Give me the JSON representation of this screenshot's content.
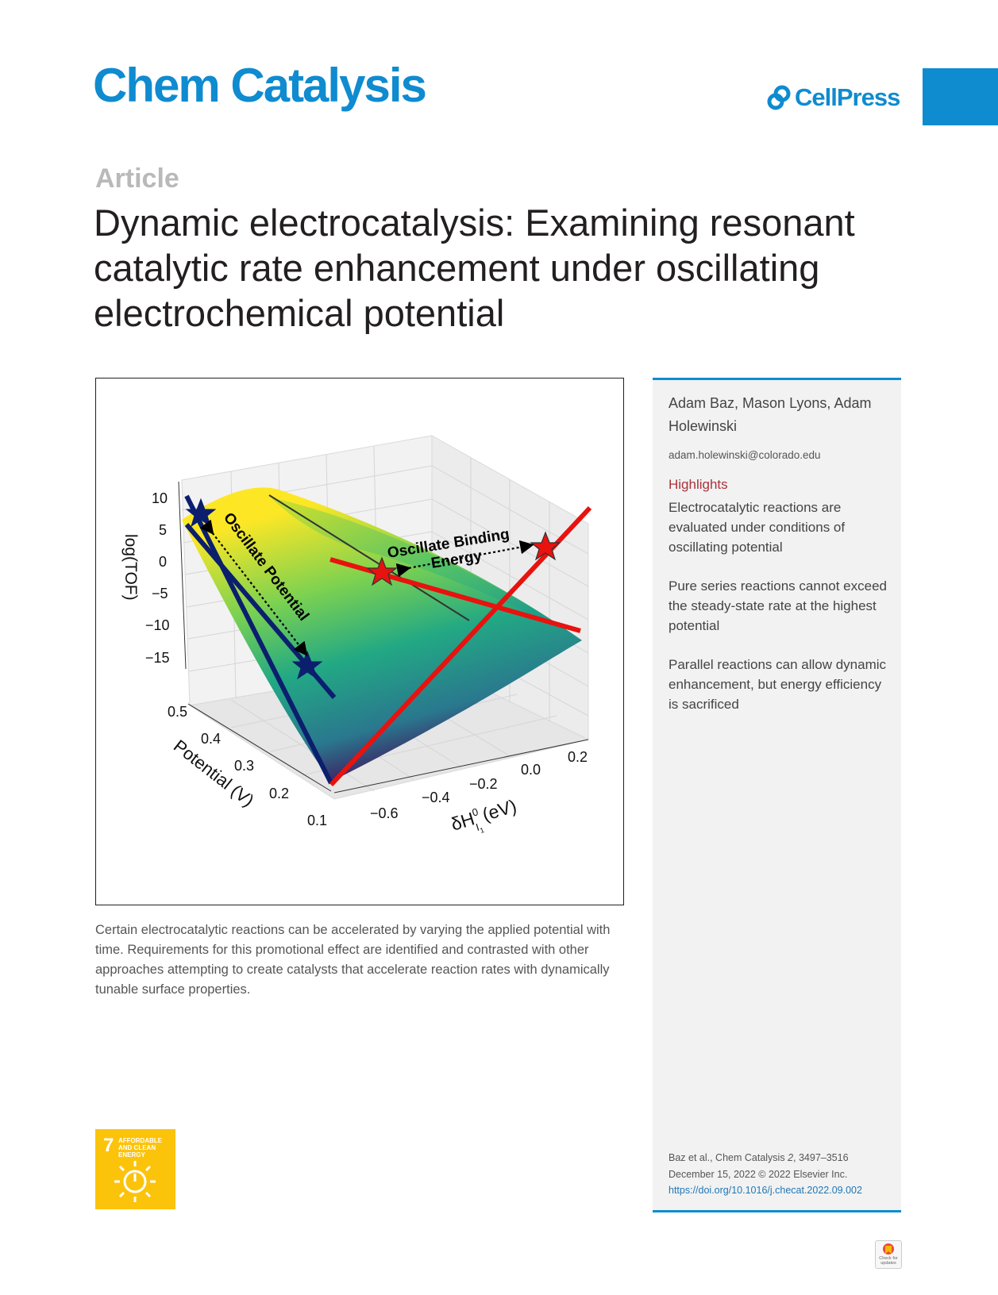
{
  "header": {
    "journal": "Chem Catalysis",
    "publisher": "CellPress"
  },
  "article": {
    "type": "Article",
    "title": "Dynamic electrocatalysis: Examining resonant catalytic rate enhancement under oscillating electrochemical potential"
  },
  "figure": {
    "labels": {
      "zlabel": "log(TOF)",
      "xlabel_potential": "Potential (V)",
      "ylabel_binding": "δH",
      "ylabel_sup": "0",
      "ylabel_sub": "I",
      "ylabel_subsub": "1",
      "ylabel_unit": "(eV)",
      "oscillate_potential": "Oscillate Potential",
      "oscillate_binding_line1": "Oscillate Binding",
      "oscillate_binding_line2": "Energy"
    },
    "z_ticks": [
      "10",
      "5",
      "0",
      "−5",
      "−10",
      "−15"
    ],
    "potential_ticks": [
      "0.5",
      "0.4",
      "0.3",
      "0.2",
      "0.1"
    ],
    "binding_ticks": [
      "−0.6",
      "−0.4",
      "−0.2",
      "0.0",
      "0.2"
    ],
    "colors": {
      "blue_line": "#0b1f6e",
      "red_line": "#e8120e"
    }
  },
  "summary": "Certain electrocatalytic reactions can be accelerated by varying the applied potential with time. Requirements for this promotional effect are identified and contrasted with other approaches attempting to create catalysts that accelerate reaction rates with dynamically tunable surface properties.",
  "sidebar": {
    "authors": "Adam Baz, Mason Lyons, Adam Holewinski",
    "email": "adam.holewinski@colorado.edu",
    "highlights_title": "Highlights",
    "highlights": [
      "Electrocatalytic reactions are evaluated under conditions of oscillating potential",
      "Pure series reactions cannot exceed the steady-state rate at the highest potential",
      "Parallel reactions can allow dynamic enhancement, but energy efficiency is sacrificed"
    ],
    "citation_line1_prefix": "Baz et al., Chem Catalysis ",
    "citation_volume": "2",
    "citation_pages": ", 3497–3516",
    "citation_line2": "December 15, 2022 © 2022 Elsevier Inc.",
    "doi": "https://doi.org/10.1016/j.checat.2022.09.002"
  },
  "sdg": {
    "number": "7",
    "label": "AFFORDABLE AND CLEAN ENERGY"
  },
  "badge": {
    "label": "Check for updates"
  }
}
